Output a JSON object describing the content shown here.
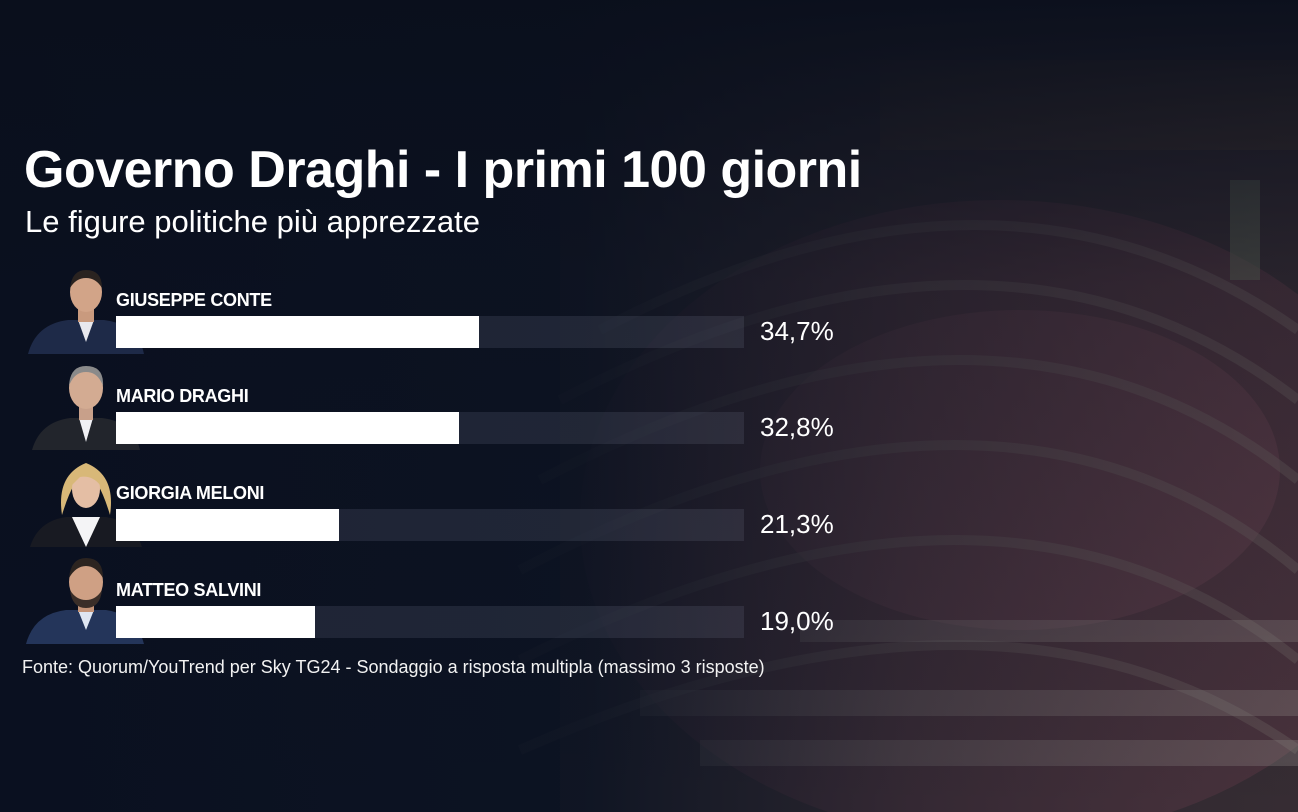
{
  "header": {
    "title": "Governo Draghi - I primi 100 giorni",
    "subtitle": "Le figure politiche più apprezzate"
  },
  "chart_data": {
    "type": "bar",
    "orientation": "horizontal",
    "unit": "%",
    "xlim": [
      0,
      60
    ],
    "categories": [
      "GIUSEPPE CONTE",
      "MARIO DRAGHI",
      "GIORGIA MELONI",
      "MATTEO SALVINI"
    ],
    "values": [
      34.7,
      32.8,
      21.3,
      19.0
    ],
    "labels": [
      "34,7%",
      "32,8%",
      "21,3%",
      "19,0%"
    ],
    "bar_color": "#ffffff",
    "track_color": "#3a4252"
  },
  "source": "Fonte: Quorum/YouTrend per Sky TG24 - Sondaggio a risposta multipla (massimo 3 risposte)"
}
